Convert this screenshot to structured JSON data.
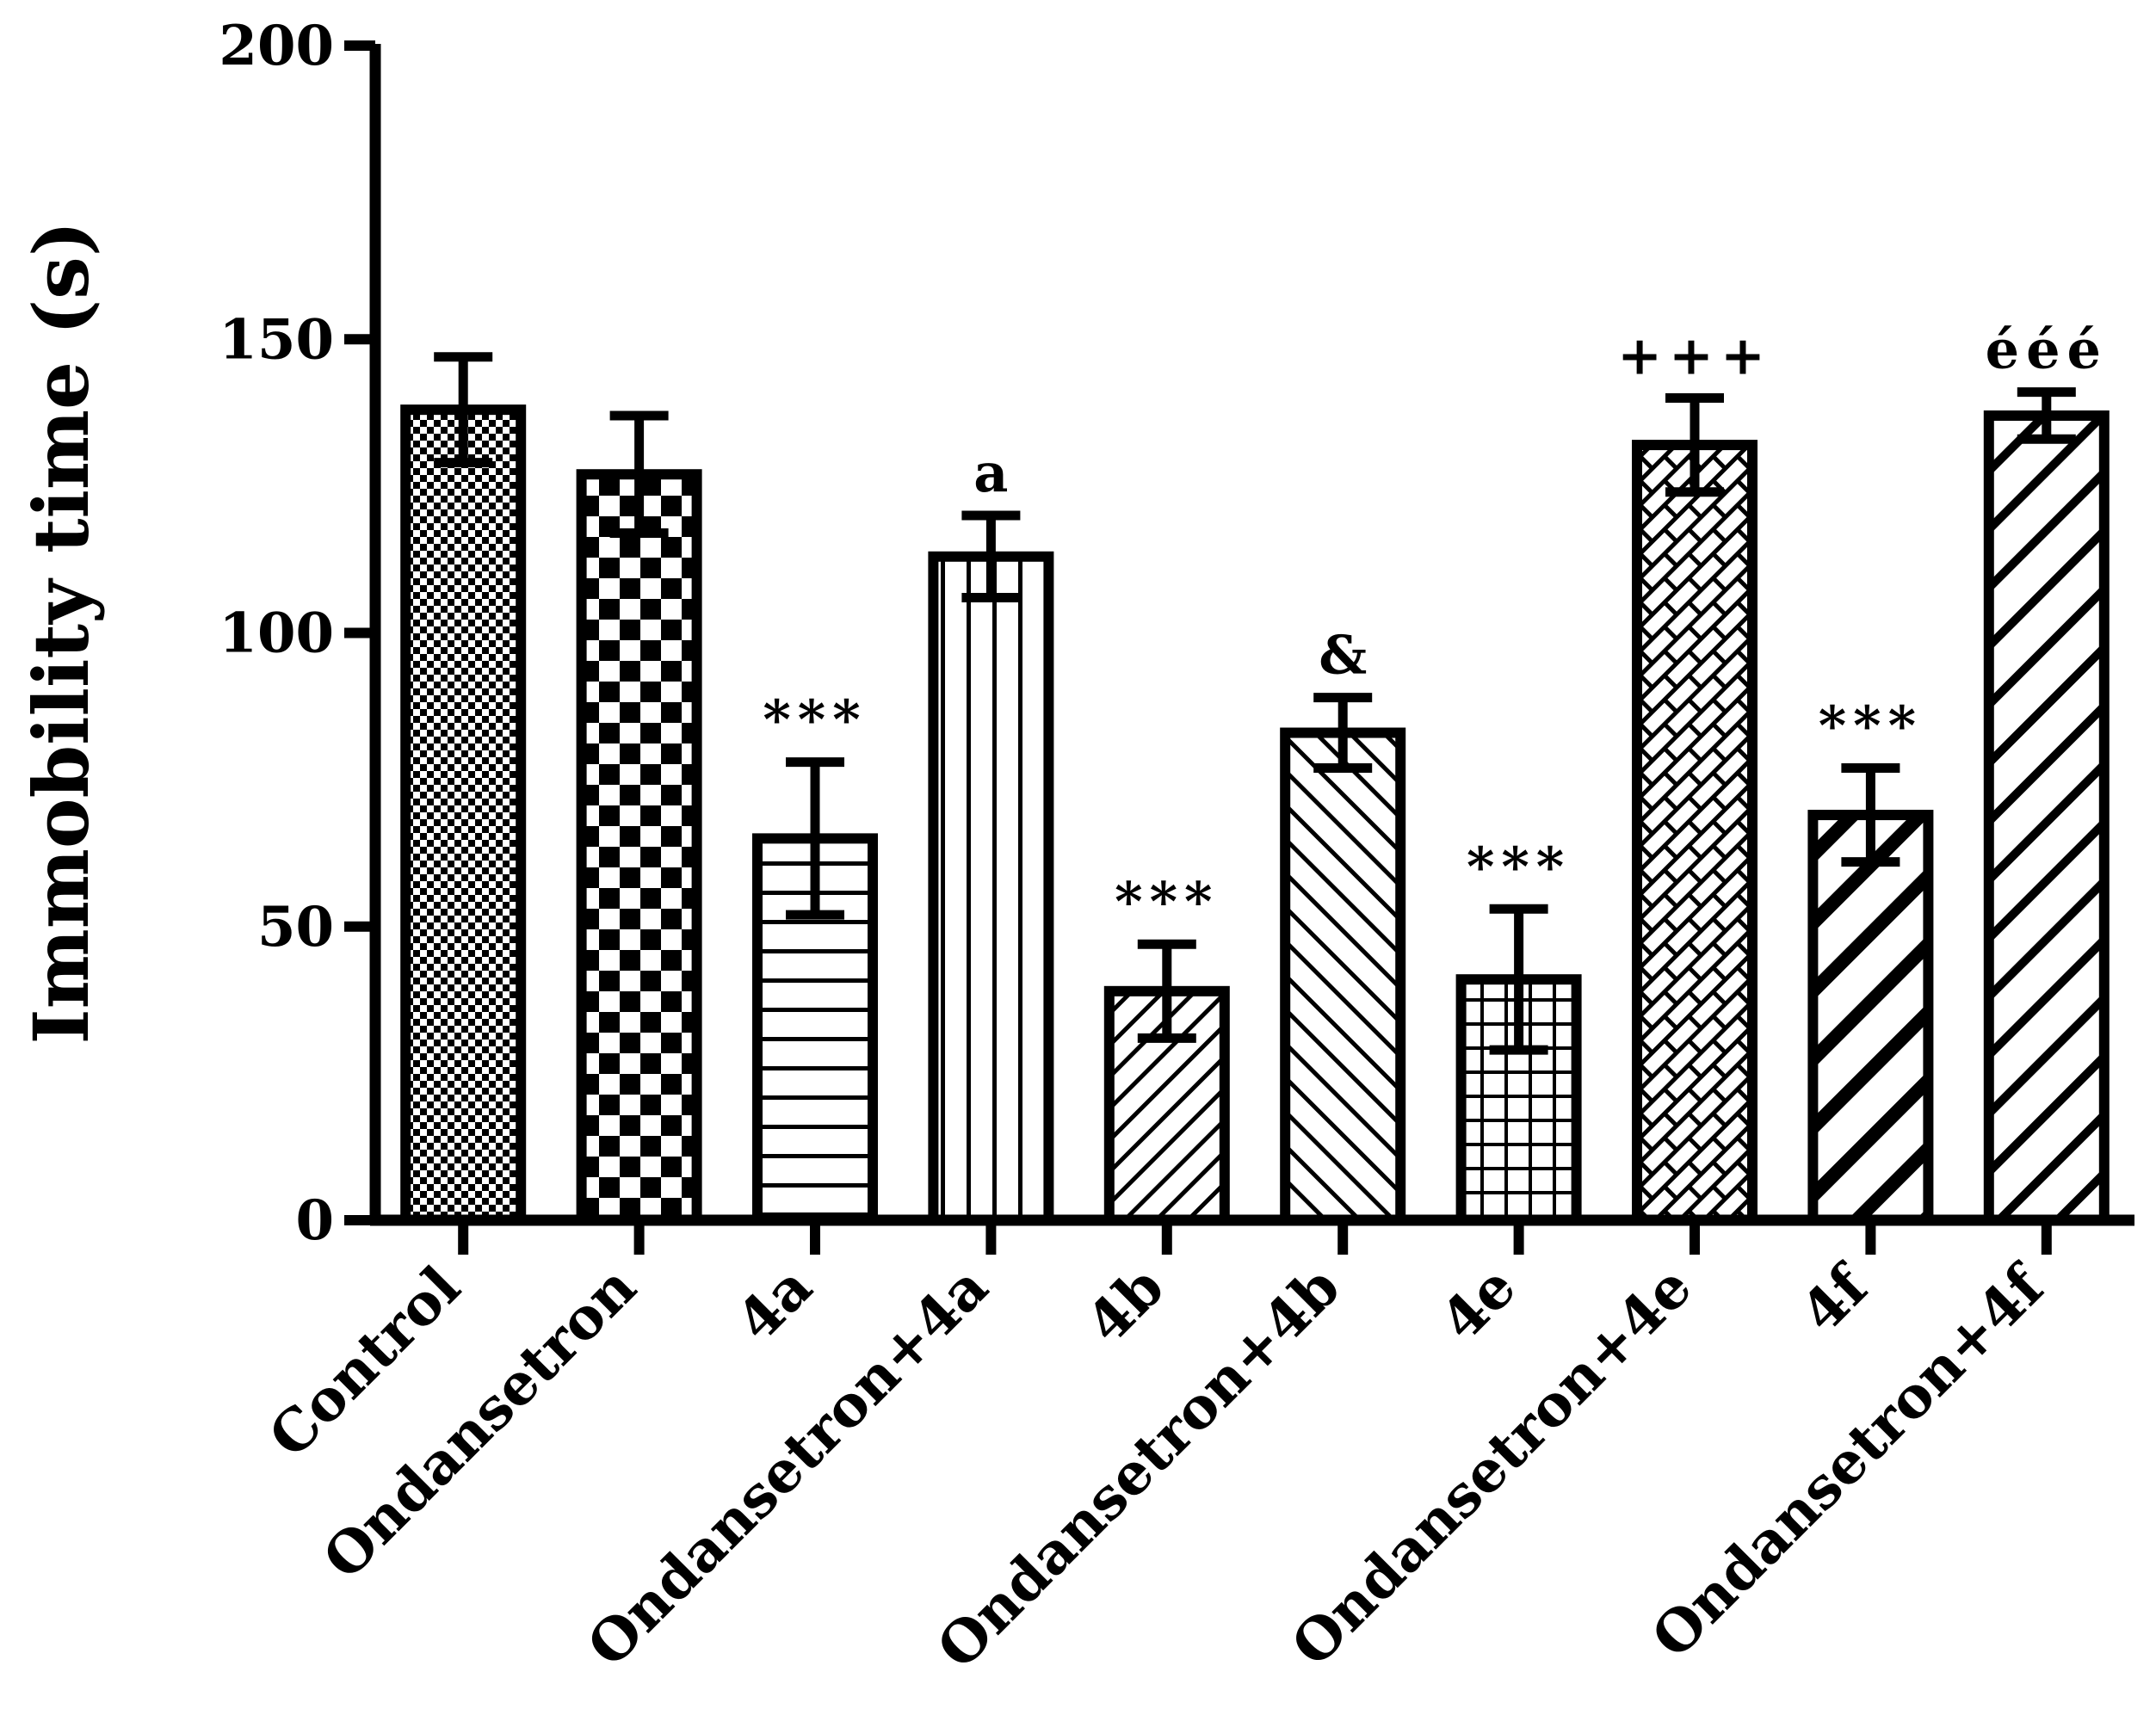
{
  "chart_data": {
    "type": "bar",
    "title": "",
    "xlabel": "",
    "ylabel": "Immobility time (s)",
    "ylim": [
      0,
      200
    ],
    "yticks": [
      0,
      50,
      100,
      150,
      200
    ],
    "grid": false,
    "legend": "none",
    "categories": [
      "Control",
      "Ondansetron",
      "4a",
      "Ondansetron+4a",
      "4b",
      "Ondansetron+4b",
      "4e",
      "Ondansetron+4e",
      "4f",
      "Ondansetron+4f"
    ],
    "values": [
      138,
      127,
      65,
      113,
      39,
      83,
      41,
      132,
      69,
      137
    ],
    "errors": [
      9,
      10,
      13,
      7,
      8,
      6,
      12,
      8,
      8,
      4
    ],
    "annotations": [
      "",
      "",
      "***",
      "a",
      "***",
      "&",
      "***",
      "+++",
      "***",
      "ééé"
    ],
    "patterns": [
      "fine-check",
      "large-check",
      "horizontal",
      "vertical",
      "diag-fine",
      "diag-back",
      "grid",
      "brick",
      "diag-bold",
      "diag-wide"
    ],
    "colors": {
      "stroke": "#000000",
      "fill": "#ffffff"
    }
  }
}
